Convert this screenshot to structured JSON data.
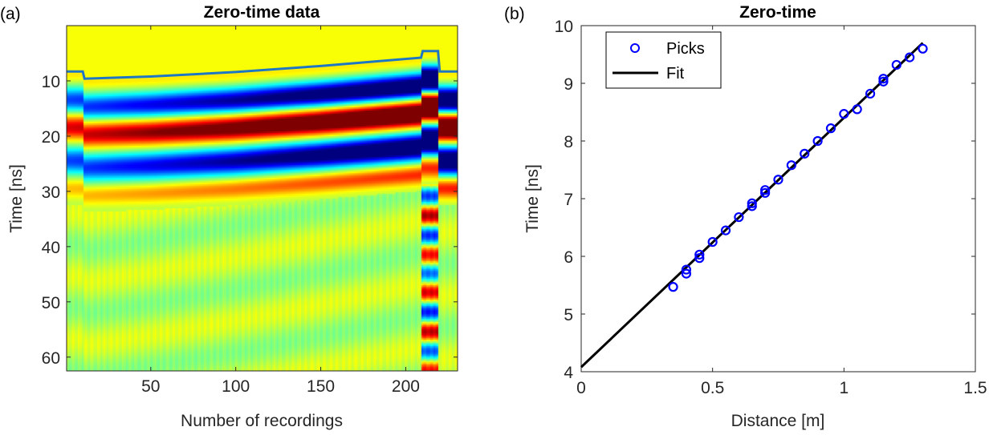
{
  "chart_data": [
    {
      "type": "heatmap",
      "panel_label": "(a)",
      "title": "Zero-time data",
      "xlabel": "Number of recordings",
      "ylabel": "Time [ns]",
      "xlim": [
        0.5,
        230.5
      ],
      "ylim": [
        0,
        62.5
      ],
      "y_reversed": true,
      "xticks": [
        50,
        100,
        150,
        200
      ],
      "yticks": [
        10,
        20,
        30,
        40,
        50,
        60
      ],
      "colormap": "jet",
      "pick_line": {
        "color": "#1f77c4",
        "recordings": [
          1,
          10,
          11,
          50,
          100,
          150,
          209,
          210,
          219,
          220,
          230
        ],
        "time": [
          8.3,
          8.3,
          9.6,
          9.2,
          8.4,
          7.3,
          5.8,
          4.6,
          4.6,
          8.3,
          8.3
        ]
      }
    },
    {
      "type": "scatter",
      "panel_label": "(b)",
      "title": "Zero-time",
      "xlabel": "Distance [m]",
      "ylabel": "Time [ns]",
      "xlim": [
        0,
        1.5
      ],
      "ylim": [
        4,
        10
      ],
      "xticks": [
        0,
        0.5,
        1,
        1.5
      ],
      "yticks": [
        4,
        5,
        6,
        7,
        8,
        9,
        10
      ],
      "legend": {
        "position": "top-left",
        "entries": [
          "Picks",
          "Fit"
        ]
      },
      "series": [
        {
          "name": "Picks",
          "marker": "circle",
          "color": "#0000ff",
          "x": [
            0.35,
            0.4,
            0.4,
            0.45,
            0.45,
            0.5,
            0.55,
            0.6,
            0.65,
            0.65,
            0.7,
            0.7,
            0.75,
            0.8,
            0.85,
            0.9,
            0.95,
            1.0,
            1.05,
            1.1,
            1.15,
            1.15,
            1.2,
            1.25,
            1.3
          ],
          "y": [
            5.47,
            5.7,
            5.77,
            5.97,
            6.03,
            6.25,
            6.45,
            6.68,
            6.87,
            6.92,
            7.1,
            7.15,
            7.33,
            7.58,
            7.78,
            8.0,
            8.22,
            8.47,
            8.55,
            8.82,
            9.03,
            9.08,
            9.32,
            9.45,
            9.6
          ]
        },
        {
          "name": "Fit",
          "type": "line",
          "color": "#000000",
          "x": [
            0,
            1.3
          ],
          "y": [
            4.08,
            9.7
          ]
        }
      ]
    }
  ]
}
